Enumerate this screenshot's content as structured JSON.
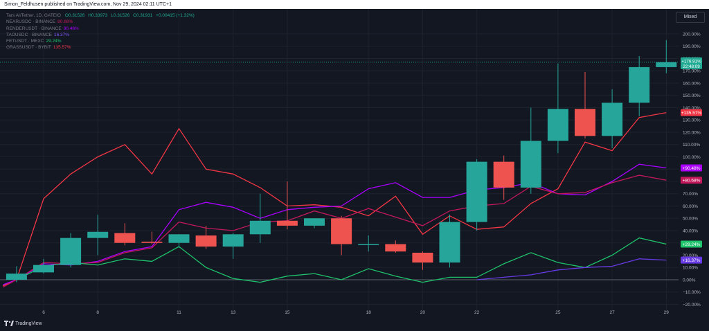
{
  "header": {
    "publisher_line": "Simon_Feldhusen published on TradingView.com, Nov 29, 2024 02:11 UTC+1"
  },
  "toolbar": {
    "scale_mode": "Mixed"
  },
  "legend": {
    "main": {
      "symbol": "Tars AI/Tether, 1D, GATEIO",
      "open": "O0.31526",
      "high": "H0.33973",
      "low": "L0.31526",
      "close": "C0.31931",
      "change": "+0.00415 (+1.32%)"
    },
    "compare": [
      {
        "symbol": "NEARUSDC · BINANCE",
        "value": "80.68%",
        "color": "#c2185b"
      },
      {
        "symbol": "RENDERUSDT · BINANCE",
        "value": "90.48%",
        "color": "#aa00ff"
      },
      {
        "symbol": "TAOUSDC · BINANCE",
        "value": "16.37%",
        "color": "#673ae4"
      },
      {
        "symbol": "FETUSDT · MEXC",
        "value": "29.24%",
        "color": "#1ec36b"
      },
      {
        "symbol": "GRASSUSDT · BYBIT",
        "value": "135.57%",
        "color": "#f23645"
      }
    ]
  },
  "footer": {
    "brand": "TradingView"
  },
  "price_badges": {
    "main_value": "+176.91%",
    "main_countdown": "22:48:09"
  },
  "chart_data": {
    "type": "candlestick",
    "title": "Tars AI/Tether, 1D, GATEIO",
    "y_unit": "percent",
    "ylim": [
      -20,
      200
    ],
    "yticks": [
      -20,
      -10,
      0,
      10,
      20,
      30,
      40,
      50,
      60,
      70,
      80,
      90,
      100,
      110,
      120,
      130,
      140,
      150,
      160,
      170,
      180,
      190,
      200
    ],
    "ytick_labels": [
      "−20.00%",
      "−10.00%",
      "0.00%",
      "10.00%",
      "20.00%",
      "30.00%",
      "40.00%",
      "50.00%",
      "60.00%",
      "70.00%",
      "80.00%",
      "90.00%",
      "100.00%",
      "110.00%",
      "120.00%",
      "130.00%",
      "140.00%",
      "150.00%",
      "160.00%",
      "170.00%",
      "180.00%",
      "190.00%",
      "200.00%"
    ],
    "xlim": [
      4.4,
      29.8
    ],
    "xticks": [
      6,
      8,
      11,
      13,
      15,
      18,
      20,
      22,
      25,
      27,
      29
    ],
    "xtick_labels": [
      "6",
      "8",
      "11",
      "13",
      "15",
      "18",
      "20",
      "22",
      "25",
      "27",
      "29"
    ],
    "grid": true,
    "candles": [
      {
        "day": 5,
        "o": 0,
        "h": 11,
        "l": -2,
        "c": 5
      },
      {
        "day": 6,
        "o": 6,
        "h": 17,
        "l": 5,
        "c": 12
      },
      {
        "day": 7,
        "o": 12,
        "h": 38,
        "l": 10,
        "c": 34
      },
      {
        "day": 8,
        "o": 34,
        "h": 53,
        "l": 20,
        "c": 39
      },
      {
        "day": 9,
        "o": 38,
        "h": 46,
        "l": 28,
        "c": 30
      },
      {
        "day": 10,
        "o": 31,
        "h": 39,
        "l": 29,
        "c": 30
      },
      {
        "day": 11,
        "o": 30,
        "h": 37,
        "l": 26,
        "c": 37
      },
      {
        "day": 12,
        "o": 36,
        "h": 44,
        "l": 25,
        "c": 27
      },
      {
        "day": 13,
        "o": 27,
        "h": 38,
        "l": 17,
        "c": 37
      },
      {
        "day": 14,
        "o": 37,
        "h": 70,
        "l": 30,
        "c": 48
      },
      {
        "day": 15,
        "o": 48,
        "h": 80,
        "l": 41,
        "c": 44
      },
      {
        "day": 16,
        "o": 44,
        "h": 50,
        "l": 42,
        "c": 50
      },
      {
        "day": 17,
        "o": 50,
        "h": 52,
        "l": 20,
        "c": 29
      },
      {
        "day": 18,
        "o": 29,
        "h": 36,
        "l": 23,
        "c": 29
      },
      {
        "day": 19,
        "o": 29,
        "h": 32,
        "l": 22,
        "c": 23
      },
      {
        "day": 20,
        "o": 22,
        "h": 23,
        "l": 8,
        "c": 14
      },
      {
        "day": 21,
        "o": 14,
        "h": 53,
        "l": 10,
        "c": 47
      },
      {
        "day": 22,
        "o": 47,
        "h": 98,
        "l": 40,
        "c": 96
      },
      {
        "day": 23,
        "o": 96,
        "h": 101,
        "l": 65,
        "c": 75
      },
      {
        "day": 24,
        "o": 75,
        "h": 140,
        "l": 70,
        "c": 113
      },
      {
        "day": 25,
        "o": 113,
        "h": 176,
        "l": 103,
        "c": 139
      },
      {
        "day": 26,
        "o": 139,
        "h": 169,
        "l": 115,
        "c": 117
      },
      {
        "day": 27,
        "o": 117,
        "h": 155,
        "l": 107,
        "c": 144
      },
      {
        "day": 28,
        "o": 144,
        "h": 182,
        "l": 133,
        "c": 173
      },
      {
        "day": 29,
        "o": 173,
        "h": 195,
        "l": 168,
        "c": 177
      }
    ],
    "series": [
      {
        "name": "GRASSUSDT · BYBIT",
        "color": "#f23645",
        "x": [
          4.5,
          5,
          6,
          7,
          8,
          9,
          10,
          11,
          12,
          13,
          14,
          15,
          16,
          17,
          18,
          19,
          20,
          21,
          22,
          23,
          24,
          25,
          26,
          27,
          28,
          29
        ],
        "values": [
          -5,
          0,
          66,
          86,
          100,
          110,
          86,
          123,
          90,
          86,
          75,
          60,
          61,
          59,
          52,
          68,
          37,
          52,
          41,
          43,
          62,
          74,
          112,
          105,
          132,
          136
        ]
      },
      {
        "name": "RENDERUSDT · BINANCE",
        "color": "#aa00ff",
        "x": [
          4.5,
          5,
          6,
          7,
          8,
          9,
          10,
          11,
          12,
          13,
          14,
          15,
          16,
          17,
          18,
          19,
          20,
          21,
          22,
          23,
          24,
          25,
          26,
          27,
          28,
          29
        ],
        "values": [
          -4,
          0,
          13,
          12,
          15,
          23,
          27,
          57,
          63,
          59,
          50,
          57,
          59,
          60,
          74,
          79,
          67,
          67,
          73,
          75,
          79,
          70,
          69,
          80,
          94,
          91
        ]
      },
      {
        "name": "NEARUSDC · BINANCE",
        "color": "#c2185b",
        "x": [
          4.5,
          5,
          6,
          7,
          8,
          9,
          10,
          11,
          12,
          13,
          14,
          15,
          16,
          17,
          18,
          19,
          20,
          21,
          22,
          23,
          24,
          25,
          26,
          27,
          28,
          29
        ],
        "values": [
          -6,
          0,
          14,
          13,
          14,
          22,
          26,
          47,
          42,
          40,
          47,
          48,
          56,
          50,
          58,
          51,
          44,
          56,
          60,
          62,
          76,
          70,
          71,
          79,
          85,
          81
        ]
      },
      {
        "name": "FETUSDT · MEXC",
        "color": "#1ec36b",
        "x": [
          5,
          6,
          7,
          8,
          9,
          10,
          11,
          12,
          13,
          14,
          15,
          16,
          17,
          18,
          19,
          20,
          21,
          22,
          23,
          24,
          25,
          26,
          27,
          28,
          29
        ],
        "values": [
          0,
          11,
          14,
          12,
          17,
          15,
          27,
          10,
          1,
          -2,
          3,
          5,
          0,
          9,
          3,
          -2,
          2,
          2,
          13,
          22,
          14,
          10,
          20,
          34,
          29
        ]
      },
      {
        "name": "TAOUSDC · BINANCE",
        "color": "#673ae4",
        "x": [
          22,
          23,
          24,
          25,
          26,
          27,
          28,
          29
        ],
        "values": [
          0,
          2,
          4,
          8,
          10,
          11,
          17,
          16
        ]
      }
    ],
    "last_value_labels": [
      "+135.57%",
      "+90.48%",
      "+80.68%",
      "+29.24%",
      "+16.37%"
    ]
  }
}
